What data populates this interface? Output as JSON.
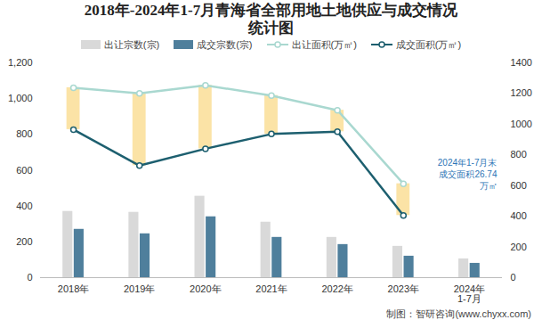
{
  "chart_data": {
    "type": "combo",
    "title": "2018年-2024年1-7月青海省全部用地土地供应与成交情况统计图",
    "categories": [
      "2018年",
      "2019年",
      "2020年",
      "2021年",
      "2022年",
      "2023年",
      "2024年\n1-7月"
    ],
    "series": [
      {
        "name": "出让宗数(宗)",
        "type": "bar",
        "color": "#d9d9d9",
        "values": [
          370,
          365,
          455,
          310,
          225,
          175,
          105
        ]
      },
      {
        "name": "成交宗数(宗)",
        "type": "bar",
        "color": "#4f7f9c",
        "values": [
          270,
          245,
          340,
          225,
          185,
          120,
          80
        ]
      },
      {
        "name": "出让面积(万㎡)",
        "type": "line",
        "axis": "y2",
        "color": "#a9d8d0",
        "marker": "circle",
        "values": [
          1238,
          1201,
          1253,
          1187,
          1091,
          612,
          null
        ]
      },
      {
        "name": "成交面积(万㎡)",
        "type": "line",
        "axis": "y2",
        "color": "#1d5f6f",
        "marker": "circle",
        "values": [
          965,
          730,
          840,
          936,
          951,
          405,
          null
        ]
      }
    ],
    "ylim": [
      0,
      1200
    ],
    "yticks": [
      0,
      200,
      400,
      600,
      800,
      1000,
      1200
    ],
    "y2lim": [
      0,
      1400
    ],
    "y2ticks": [
      0,
      200,
      400,
      600,
      800,
      1000,
      1200,
      1400
    ],
    "grid": false,
    "annotations": [
      "2024年1-7月末\n成交面积26.74\n万㎡"
    ],
    "source": "制图：智研咨询(www.chyxx.com)"
  }
}
